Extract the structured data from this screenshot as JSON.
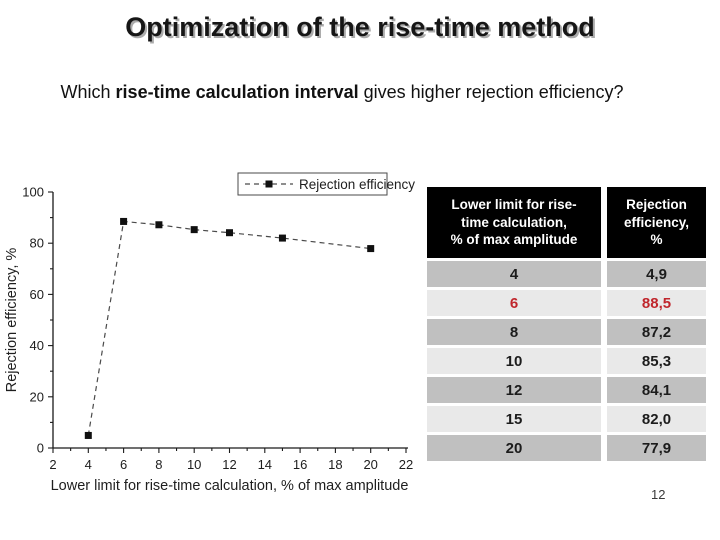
{
  "slide": {
    "title": "Optimization of the rise-time method",
    "subtitle": {
      "prefix": "Which ",
      "bold": "rise-time calculation interval",
      "suffix": " gives higher rejection efficiency?"
    },
    "page_number": "12"
  },
  "chart_data": {
    "type": "line",
    "title": "",
    "xlabel": "Lower limit for rise-time calculation, % of max amplitude",
    "ylabel": "Rejection efficiency, %",
    "legend": [
      "Rejection efficiency"
    ],
    "legend_position": "top-right",
    "x": [
      4,
      6,
      8,
      10,
      12,
      15,
      20
    ],
    "series": [
      {
        "name": "Rejection efficiency",
        "values": [
          4.9,
          88.5,
          87.2,
          85.3,
          84.1,
          82.0,
          77.9
        ]
      }
    ],
    "xlim": [
      2,
      22
    ],
    "ylim": [
      0,
      100
    ],
    "x_major_step": 2,
    "x_minor_step": 1,
    "y_major_step": 20,
    "y_minor_step": 10,
    "grid": false,
    "line_style": "dashed",
    "marker": "square",
    "colors": {
      "line": "#4a4a4a",
      "marker": "#101010",
      "axis": "#1a1a1a",
      "text": "#1e1e1e"
    }
  },
  "table": {
    "headers": [
      "Lower limit for rise-time calculation, % of max amplitude",
      "Rejection efficiency, %"
    ],
    "header_lines": [
      [
        "Lower limit for rise-",
        "time calculation,",
        "% of max amplitude"
      ],
      [
        "Rejection",
        "efficiency,",
        "%"
      ]
    ],
    "rows": [
      {
        "limit": "4",
        "efficiency": "4,9",
        "highlight": false
      },
      {
        "limit": "6",
        "efficiency": "88,5",
        "highlight": true
      },
      {
        "limit": "8",
        "efficiency": "87,2",
        "highlight": false
      },
      {
        "limit": "10",
        "efficiency": "85,3",
        "highlight": false
      },
      {
        "limit": "12",
        "efficiency": "84,1",
        "highlight": false
      },
      {
        "limit": "15",
        "efficiency": "82,0",
        "highlight": false
      },
      {
        "limit": "20",
        "efficiency": "77,9",
        "highlight": false
      }
    ],
    "colors": {
      "header_bg": "#000000",
      "header_text": "#ffffff",
      "row_dark": "#c0c0c0",
      "row_light": "#e9e9e9",
      "text": "#1c1c1c",
      "highlight_text": "#c0262c"
    }
  }
}
